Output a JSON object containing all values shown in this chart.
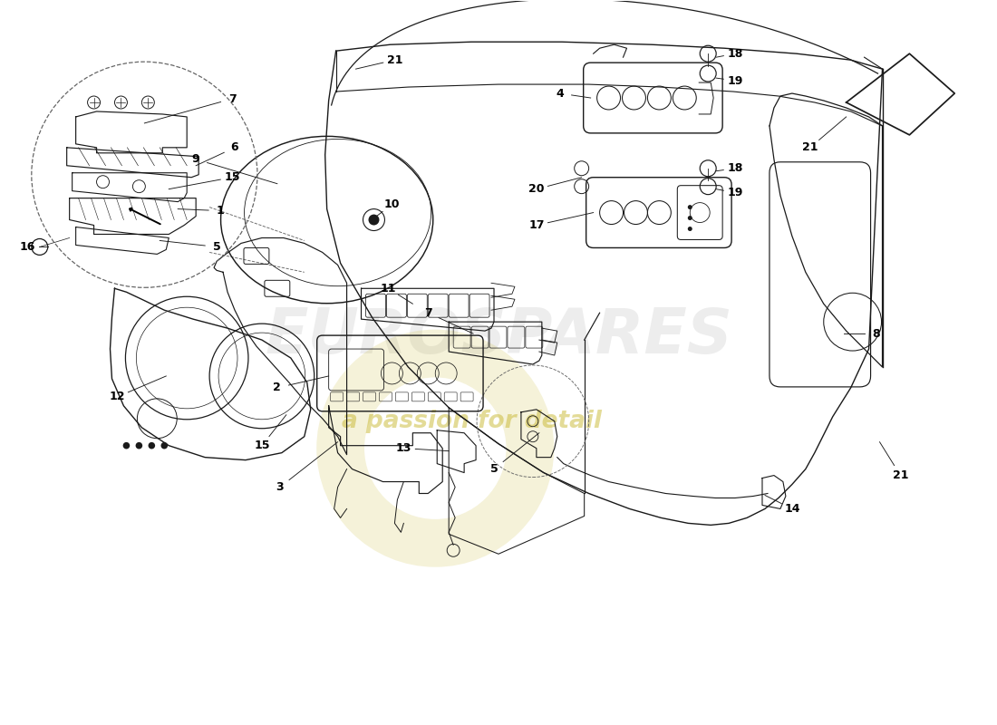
{
  "bg": "#ffffff",
  "lc": "#1a1a1a",
  "wm1": "EUROSPARES",
  "wm2": "a passion for detail",
  "wm1_color": "#c0c0c0",
  "wm2_color": "#c8b830",
  "figsize": [
    11.0,
    8.0
  ],
  "dpi": 100
}
